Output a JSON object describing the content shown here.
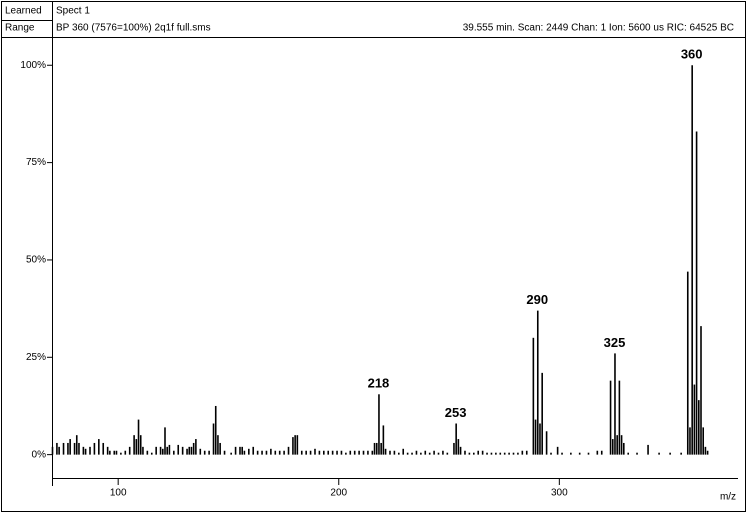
{
  "header": {
    "learned": "Learned",
    "spect": "Spect 1",
    "range": "Range",
    "file": "BP 360 (7576=100%) 2q1f full.sms",
    "scan": "39.555 min. Scan: 2449 Chan: 1 Ion: 5600 us RIC: 64525 BC"
  },
  "chart_data": {
    "type": "stem",
    "color": "#000000",
    "x_label": "m/z",
    "xlim": [
      70,
      381
    ],
    "xticks": [
      100,
      200,
      300
    ],
    "ylim": [
      -6,
      107
    ],
    "yticks": [
      {
        "value": 0,
        "label": "0%"
      },
      {
        "value": 25,
        "label": "25%"
      },
      {
        "value": 50,
        "label": "50%"
      },
      {
        "value": 75,
        "label": "75%"
      },
      {
        "value": 100,
        "label": "100%"
      }
    ],
    "x": [
      70,
      72,
      73,
      75,
      77,
      78,
      80,
      81,
      82,
      84,
      85,
      87,
      89,
      91,
      93,
      95,
      96,
      98,
      99,
      101,
      103,
      105,
      107,
      108,
      109,
      110,
      111,
      113,
      115,
      117,
      119,
      120,
      121,
      122,
      123,
      125,
      127,
      129,
      131,
      132,
      133,
      134,
      135,
      137,
      139,
      141,
      143,
      144,
      145,
      146,
      148,
      151,
      153,
      155,
      156,
      157,
      159,
      161,
      163,
      165,
      167,
      169,
      171,
      173,
      175,
      177,
      179,
      180,
      181,
      183,
      185,
      187,
      189,
      191,
      193,
      195,
      197,
      199,
      201,
      203,
      205,
      207,
      209,
      211,
      213,
      215,
      216,
      217,
      218,
      219,
      220,
      221,
      223,
      225,
      227,
      229,
      231,
      233,
      235,
      237,
      239,
      241,
      243,
      245,
      247,
      249,
      252,
      253,
      254,
      255,
      257,
      259,
      261,
      263,
      265,
      267,
      269,
      271,
      273,
      275,
      277,
      279,
      281,
      283,
      285,
      288,
      289,
      290,
      291,
      292,
      294,
      296,
      299,
      301,
      305,
      309,
      313,
      317,
      319,
      323,
      324,
      325,
      326,
      327,
      328,
      329,
      331,
      335,
      340,
      345,
      350,
      355,
      358,
      359,
      360,
      361,
      362,
      363,
      364,
      365,
      366,
      367
    ],
    "values": [
      2,
      3,
      2,
      3,
      3,
      4,
      3,
      5,
      3,
      2,
      1.5,
      2,
      3,
      4,
      3,
      2,
      1,
      1,
      1,
      0.5,
      1,
      2,
      5,
      4,
      9,
      5,
      2,
      1,
      0.5,
      2,
      2,
      1.5,
      7,
      2,
      2.5,
      1,
      2.5,
      2,
      1.5,
      2,
      2,
      3,
      4,
      1.5,
      1,
      1,
      8,
      12.5,
      5,
      3,
      1,
      0.5,
      2,
      2,
      2,
      1,
      1.5,
      2,
      1,
      1,
      1,
      1.5,
      1,
      1,
      1,
      2,
      4.5,
      5,
      5,
      1,
      1,
      1,
      1.5,
      1,
      1,
      1,
      1,
      1,
      1,
      0.5,
      1,
      1,
      1,
      1,
      1,
      1,
      3,
      3,
      15.5,
      3,
      7.5,
      1.5,
      1,
      1,
      0.5,
      1.5,
      0.5,
      0.5,
      1,
      0.5,
      1,
      0.5,
      1,
      0.5,
      1,
      0.5,
      3,
      8,
      4,
      2,
      1,
      0.5,
      0.5,
      1,
      1,
      0.5,
      0.5,
      0.5,
      0.5,
      0.5,
      0.5,
      0.5,
      0.5,
      1,
      1,
      30,
      9,
      37,
      8,
      21,
      6,
      0.5,
      2,
      0.5,
      0.5,
      0.5,
      0.5,
      1,
      1,
      19,
      4,
      26,
      5,
      19,
      5,
      3,
      0.5,
      0.5,
      2.5,
      0.5,
      0.5,
      0.5,
      47,
      7,
      100,
      18,
      83,
      14,
      33,
      7,
      2,
      1
    ],
    "annotations": [
      {
        "text": "218",
        "x": 218
      },
      {
        "text": "253",
        "x": 253
      },
      {
        "text": "290",
        "x": 290
      },
      {
        "text": "325",
        "x": 325
      },
      {
        "text": "360",
        "x": 360
      }
    ]
  }
}
